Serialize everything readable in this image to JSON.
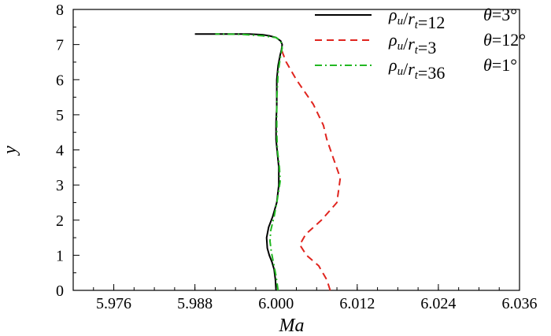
{
  "chart_data": {
    "type": "line",
    "xlabel": "Ma",
    "ylabel": "y",
    "xlim": [
      5.97,
      6.036
    ],
    "ylim": [
      0,
      8
    ],
    "xticks": [
      5.976,
      5.988,
      6.0,
      6.012,
      6.024,
      6.036
    ],
    "xtick_labels": [
      "5.976",
      "5.988",
      "6.000",
      "6.012",
      "6.024",
      "6.036"
    ],
    "yticks": [
      0,
      1,
      2,
      3,
      4,
      5,
      6,
      7,
      8
    ],
    "ytick_labels": [
      "0",
      "1",
      "2",
      "3",
      "4",
      "5",
      "6",
      "7",
      "8"
    ],
    "legend_position": "top-right",
    "series": [
      {
        "name": "ρu/rt=12  θ=3°",
        "legend": {
          "rho": "ρ",
          "u": "u",
          "r": "r",
          "t": "t",
          "value": "=12",
          "theta_value": "=3°"
        },
        "color": "#000000",
        "dash": "solid",
        "x": [
          6.0,
          5.9999,
          5.9997,
          5.9994,
          5.999,
          5.9987,
          5.9986,
          5.9989,
          5.9995,
          6.0001,
          6.0004,
          6.0004,
          6.0002,
          6.0,
          6.0,
          6.0001,
          6.0001,
          6.0001,
          6.0003,
          6.0006,
          6.0008,
          6.0009,
          6.0007,
          6.0,
          5.999,
          5.998,
          5.996,
          5.993,
          5.988
        ],
        "y": [
          0.0,
          0.3,
          0.6,
          0.8,
          1.0,
          1.2,
          1.5,
          1.8,
          2.1,
          2.5,
          3.0,
          3.5,
          3.9,
          4.3,
          4.8,
          5.2,
          5.6,
          6.0,
          6.4,
          6.7,
          6.85,
          7.0,
          7.1,
          7.2,
          7.25,
          7.28,
          7.3,
          7.3,
          7.3
        ]
      },
      {
        "name": "ρu/rt=3  θ=12°",
        "legend": {
          "rho": "ρ",
          "u": "u",
          "r": "r",
          "t": "t",
          "value": "=3",
          "theta_value": "=12°"
        },
        "color": "#e0241e",
        "dash": "dashed",
        "x": [
          6.008,
          6.0075,
          6.0063,
          6.0045,
          6.0035,
          6.0044,
          6.0067,
          6.009,
          6.0095,
          6.0084,
          6.0075,
          6.007,
          6.0055,
          6.003,
          6.0015,
          6.0008
        ],
        "y": [
          0.0,
          0.3,
          0.7,
          1.0,
          1.3,
          1.6,
          2.0,
          2.5,
          3.2,
          3.8,
          4.3,
          4.7,
          5.3,
          6.0,
          6.5,
          6.85
        ]
      },
      {
        "name": "ρu/rt=36  θ=1°",
        "legend": {
          "rho": "ρ",
          "u": "u",
          "r": "r",
          "t": "t",
          "value": "=36",
          "theta_value": "=1°"
        },
        "color": "#22b822",
        "dash": "dashdot",
        "x": [
          6.0003,
          6.0,
          5.9996,
          5.9993,
          5.9991,
          5.9992,
          5.9997,
          6.0002,
          6.0006,
          6.0005,
          6.0002,
          6.0001,
          6.0001,
          6.0001,
          6.0002,
          6.0003,
          6.0006,
          6.0009,
          6.0007,
          6.0,
          5.998,
          5.995,
          5.991
        ],
        "y": [
          0.0,
          0.4,
          0.8,
          1.1,
          1.4,
          1.7,
          2.1,
          2.6,
          3.1,
          3.5,
          4.0,
          4.5,
          5.0,
          5.4,
          5.8,
          6.2,
          6.6,
          6.9,
          7.1,
          7.2,
          7.25,
          7.29,
          7.3
        ]
      }
    ]
  }
}
